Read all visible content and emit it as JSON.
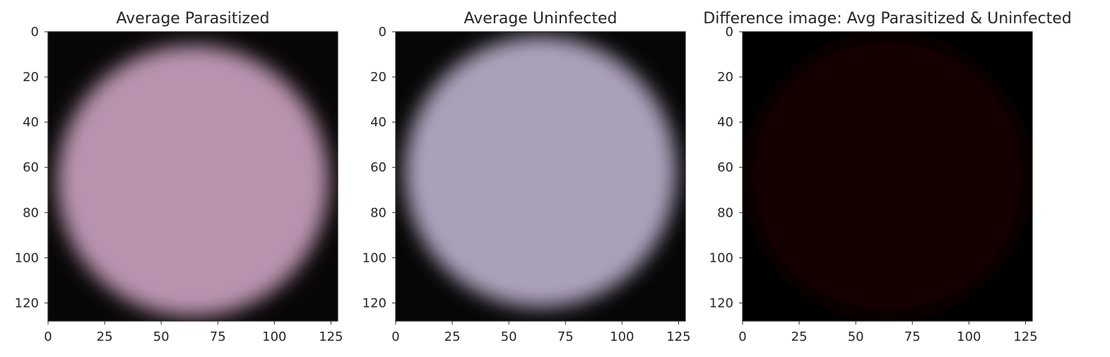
{
  "chart_data": [
    {
      "type": "heatmap",
      "title": "Average Parasitized",
      "xlim": [
        0,
        128
      ],
      "ylim": [
        128,
        0
      ],
      "xticks": [
        0,
        25,
        50,
        75,
        100,
        125
      ],
      "yticks": [
        0,
        20,
        40,
        60,
        80,
        100,
        120
      ],
      "grid": false,
      "image": {
        "content": "averaged cell image",
        "cell_color": "#b893ae",
        "background_color": "#080606",
        "center": [
          64,
          66
        ],
        "radius": 60
      }
    },
    {
      "type": "heatmap",
      "title": "Average Uninfected",
      "xlim": [
        0,
        128
      ],
      "ylim": [
        128,
        0
      ],
      "xticks": [
        0,
        25,
        50,
        75,
        100,
        125
      ],
      "yticks": [
        0,
        20,
        40,
        60,
        80,
        100,
        120
      ],
      "grid": false,
      "image": {
        "content": "averaged cell image",
        "cell_color": "#aaa0ba",
        "background_color": "#060606",
        "center": [
          64,
          62
        ],
        "radius": 60
      }
    },
    {
      "type": "heatmap",
      "title": "Difference image: Avg Parasitized & Uninfected",
      "xlim": [
        0,
        128
      ],
      "ylim": [
        128,
        0
      ],
      "xticks": [
        0,
        25,
        50,
        75,
        100,
        125
      ],
      "yticks": [
        0,
        20,
        40,
        60,
        80,
        100,
        120
      ],
      "grid": false,
      "image": {
        "content": "difference image",
        "cell_color": "#140505",
        "background_color": "#000000",
        "center": [
          64,
          64
        ],
        "radius": 62
      }
    }
  ]
}
